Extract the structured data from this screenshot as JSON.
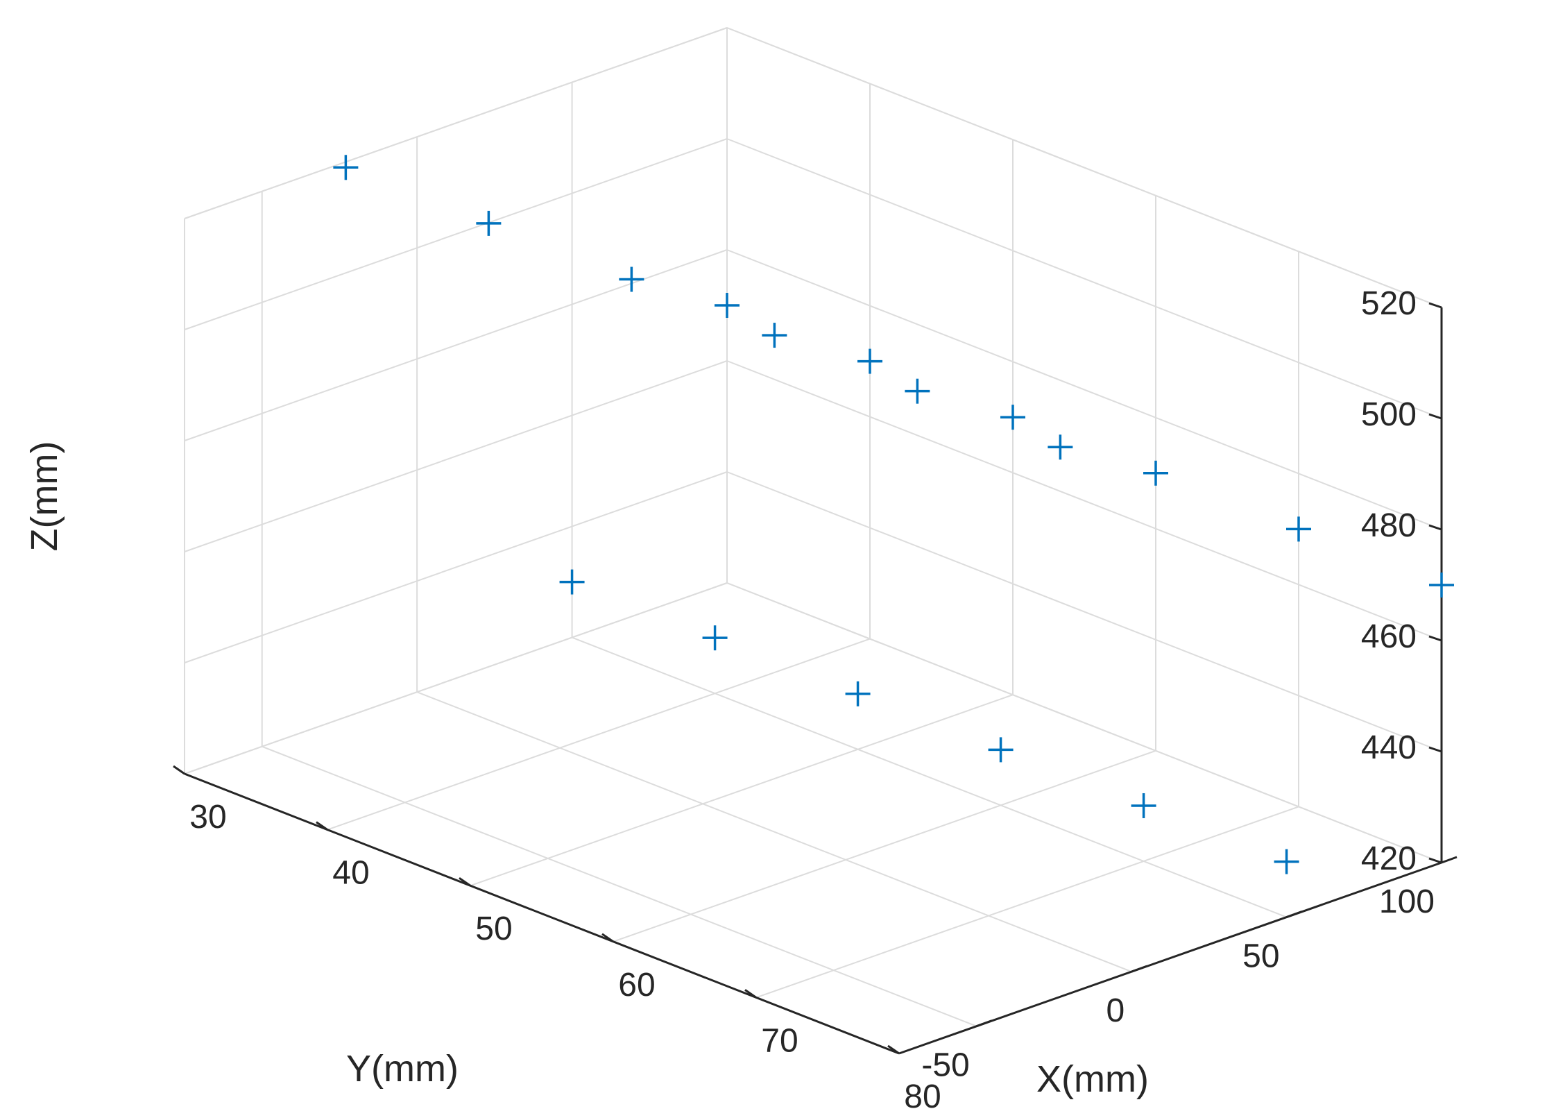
{
  "chart_data": {
    "type": "scatter",
    "xlabel": "X(mm)",
    "ylabel": "Y(mm)",
    "zlabel": "Z(mm)",
    "xlim": [
      30,
      80
    ],
    "ylim": [
      -75,
      100
    ],
    "zlim": [
      420,
      520
    ],
    "xticks": [
      "30",
      "40",
      "50",
      "60",
      "70",
      "80"
    ],
    "yticks": [
      "-50",
      "0",
      "50",
      "100"
    ],
    "zticks": [
      "420",
      "440",
      "460",
      "480",
      "500",
      "520"
    ],
    "grid": true,
    "marker": "+",
    "marker_color": "#0072bd",
    "series": [
      {
        "x": [
          30,
          40,
          50,
          60,
          70,
          80,
          30,
          40,
          50,
          60,
          70,
          80,
          30,
          40,
          50,
          60,
          70,
          80
        ],
        "y": [
          50,
          50,
          50,
          50,
          50,
          50,
          100,
          100,
          100,
          100,
          100,
          100,
          -23,
          -23,
          -23,
          -23,
          -23,
          -23
        ],
        "z": [
          430,
          430,
          430,
          430,
          430,
          430,
          470,
          470,
          470,
          470,
          470,
          470,
          519,
          519,
          519,
          519,
          519,
          519
        ]
      }
    ]
  }
}
